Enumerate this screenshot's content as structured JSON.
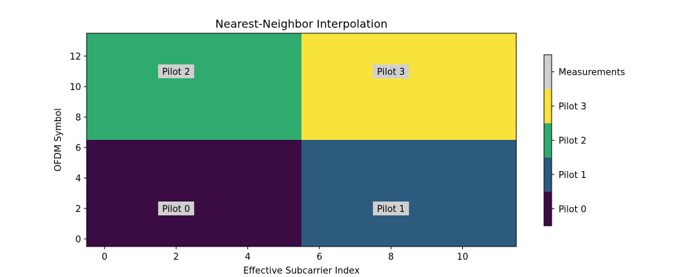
{
  "chart_data": {
    "type": "heatmap",
    "title": "Nearest-Neighbor Interpolation",
    "xlabel": "Effective Subcarrier Index",
    "ylabel": "OFDM Symbol",
    "xlim": [
      -0.5,
      11.5
    ],
    "ylim": [
      -0.5,
      13.5
    ],
    "xticks": [
      0,
      2,
      4,
      6,
      8,
      10
    ],
    "yticks": [
      0,
      2,
      4,
      6,
      8,
      10,
      12
    ],
    "grid": false,
    "regions": [
      {
        "x0": -0.5,
        "x1": 5.5,
        "y0": -0.5,
        "y1": 6.5,
        "category": 0
      },
      {
        "x0": 5.5,
        "x1": 11.5,
        "y0": -0.5,
        "y1": 6.5,
        "category": 1
      },
      {
        "x0": -0.5,
        "x1": 5.5,
        "y0": 6.5,
        "y1": 13.5,
        "category": 2
      },
      {
        "x0": 5.5,
        "x1": 11.5,
        "y0": 6.5,
        "y1": 13.5,
        "category": 3
      }
    ],
    "annotations": [
      {
        "text": "Pilot 0",
        "x": 2,
        "y": 2
      },
      {
        "text": "Pilot 1",
        "x": 8,
        "y": 2
      },
      {
        "text": "Pilot 2",
        "x": 2,
        "y": 11
      },
      {
        "text": "Pilot 3",
        "x": 8,
        "y": 11
      }
    ],
    "colorbar": {
      "labels": [
        "Pilot 0",
        "Pilot 1",
        "Pilot 2",
        "Pilot 3",
        "Measurements"
      ],
      "colors": [
        "#3b0b44",
        "#2c5b7e",
        "#2fab6f",
        "#f8e33c",
        "#d0d0d0"
      ]
    },
    "annotation_box_color": "#d0d0d0"
  }
}
